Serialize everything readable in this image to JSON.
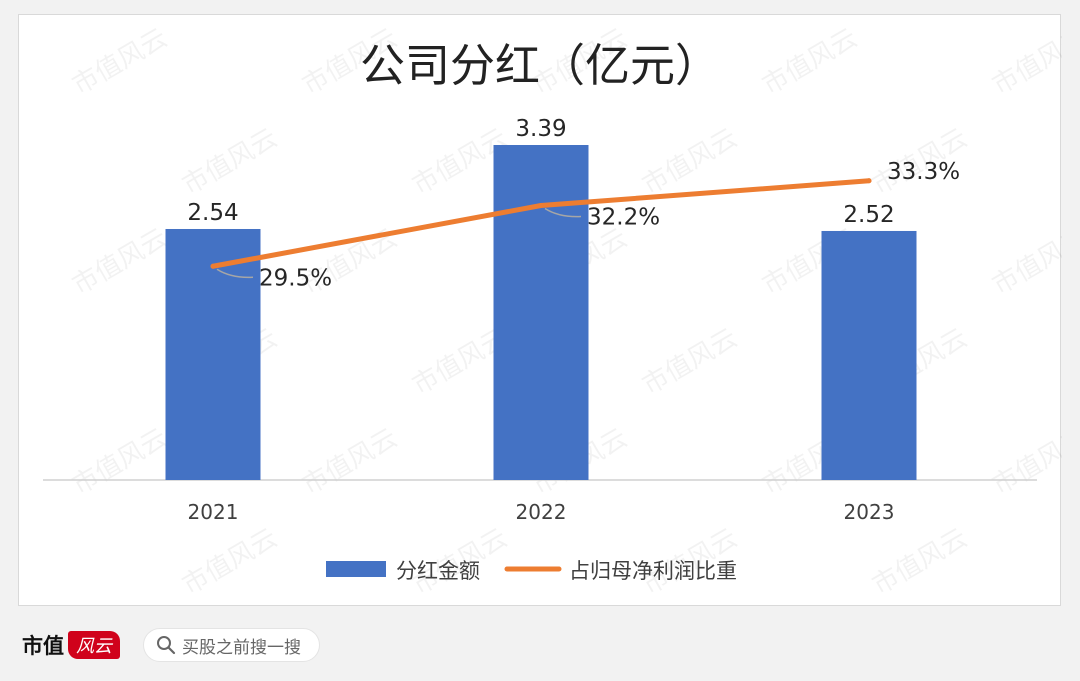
{
  "chart_data": {
    "type": "bar",
    "title": "公司分红（亿元）",
    "categories": [
      "2021",
      "2022",
      "2023"
    ],
    "series": [
      {
        "name": "分红金额",
        "type": "bar",
        "values": [
          2.54,
          3.39,
          2.52
        ],
        "labels": [
          "2.54",
          "3.39",
          "2.52"
        ],
        "color": "#4472c4"
      },
      {
        "name": "占归母净利润比重",
        "type": "line",
        "values": [
          29.5,
          32.2,
          33.3
        ],
        "labels": [
          "29.5%",
          "32.2%",
          "33.3%"
        ],
        "color": "#ed7d31"
      }
    ],
    "xlabel": "",
    "ylabel": "",
    "bar_ylim": [
      0,
      3.39
    ],
    "line_ylim": [
      20,
      34
    ],
    "grid": false,
    "legend_position": "bottom"
  },
  "watermark": "市值风云",
  "footer": {
    "brand": "市值",
    "brand_mark": "风云",
    "search_icon": "search-icon",
    "search_text": "买股之前搜一搜"
  }
}
